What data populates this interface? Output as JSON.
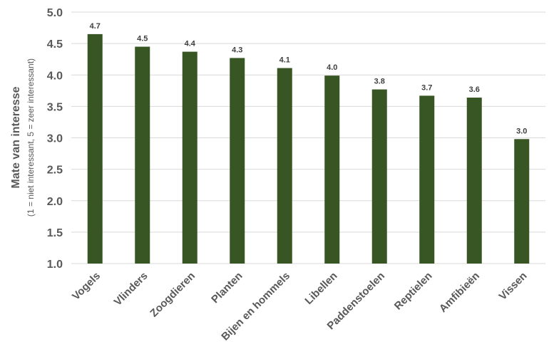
{
  "chart_data": {
    "type": "bar",
    "categories": [
      "Vogels",
      "Vlinders",
      "Zoogdieren",
      "Planten",
      "Bijen en hommels",
      "Libellen",
      "Paddenstoelen",
      "Reptielen",
      "Amfibieën",
      "Vissen"
    ],
    "values": [
      4.65,
      4.45,
      4.37,
      4.27,
      4.11,
      3.99,
      3.77,
      3.67,
      3.64,
      2.98
    ],
    "data_labels": [
      "4.7",
      "4.5",
      "4.4",
      "4.3",
      "4.1",
      "4.0",
      "3.8",
      "3.7",
      "3.6",
      "3.0"
    ],
    "ylabel": "Mate van interesse",
    "ylabel_sub": "(1 = niet interessant, 5 = zeer interessant)",
    "xlabel": "",
    "title": "",
    "ylim": [
      1.0,
      5.0
    ],
    "yticks": [
      "1.0",
      "1.5",
      "2.0",
      "2.5",
      "3.0",
      "3.5",
      "4.0",
      "4.5",
      "5.0"
    ],
    "grid": true,
    "legend": "none",
    "bar_color": "#375623"
  }
}
